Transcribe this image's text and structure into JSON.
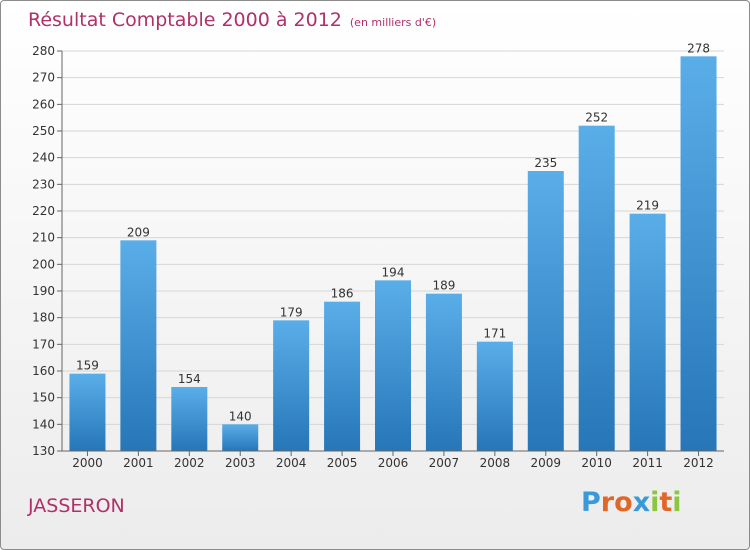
{
  "header": {
    "title": "Résultat Comptable 2000 à 2012",
    "subtitle": "(en milliers d'€)"
  },
  "footer": {
    "town": "JASSERON",
    "brand": "Proxiti"
  },
  "colors": {
    "accent": "#b0306a",
    "bar_top": "#5aaee8",
    "bar_bottom": "#2676b8"
  },
  "chart_data": {
    "type": "bar",
    "title": "Résultat Comptable 2000 à 2012",
    "subtitle": "(en milliers d'€)",
    "categories": [
      "2000",
      "2001",
      "2002",
      "2003",
      "2004",
      "2005",
      "2006",
      "2007",
      "2008",
      "2009",
      "2010",
      "2011",
      "2012"
    ],
    "values": [
      159,
      209,
      154,
      140,
      179,
      186,
      194,
      189,
      171,
      235,
      252,
      219,
      278
    ],
    "ylim": [
      130,
      280
    ],
    "yticks": [
      130,
      140,
      150,
      160,
      170,
      180,
      190,
      200,
      210,
      220,
      230,
      240,
      250,
      260,
      270,
      280
    ],
    "grid": true,
    "legend": "none"
  }
}
